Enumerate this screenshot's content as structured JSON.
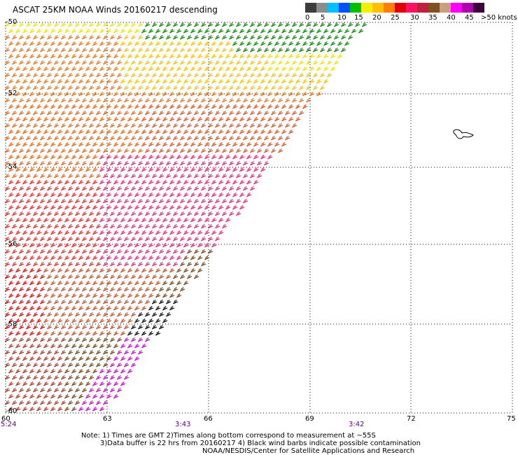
{
  "header": {
    "title": "ASCAT 25KM NOAA Winds 20160217 descending"
  },
  "legend": {
    "colors": [
      "#3c3c3c",
      "#8c8c8c",
      "#00bfff",
      "#0050ff",
      "#00c000",
      "#f0f000",
      "#ffc000",
      "#ff8000",
      "#e00000",
      "#ff1060",
      "#c02040",
      "#805020",
      "#c8a080",
      "#ff00ff",
      "#b000b0",
      "#400040"
    ],
    "labels": [
      "0",
      "5",
      "10",
      "15",
      "20",
      "25",
      "30",
      "35",
      "40",
      "45",
      ">50 knots"
    ]
  },
  "axes": {
    "lat_labels": [
      "-50",
      "-52",
      "-54",
      "-56",
      "-58",
      "-60"
    ],
    "lon_labels": [
      "60",
      "63",
      "66",
      "69",
      "72",
      "75"
    ]
  },
  "times": [
    "5:24",
    "3:43",
    "3:42"
  ],
  "notes": {
    "line1": "Note: 1) Times are GMT 2)Times along bottom correspond to measurement at ~55S",
    "line2": "3)Data buffer is 22 hrs from 20160217 4) Black wind barbs indicate possible contamination",
    "line3": "NOAA/NESDIS/Center for Satellite Applications and Research"
  }
}
